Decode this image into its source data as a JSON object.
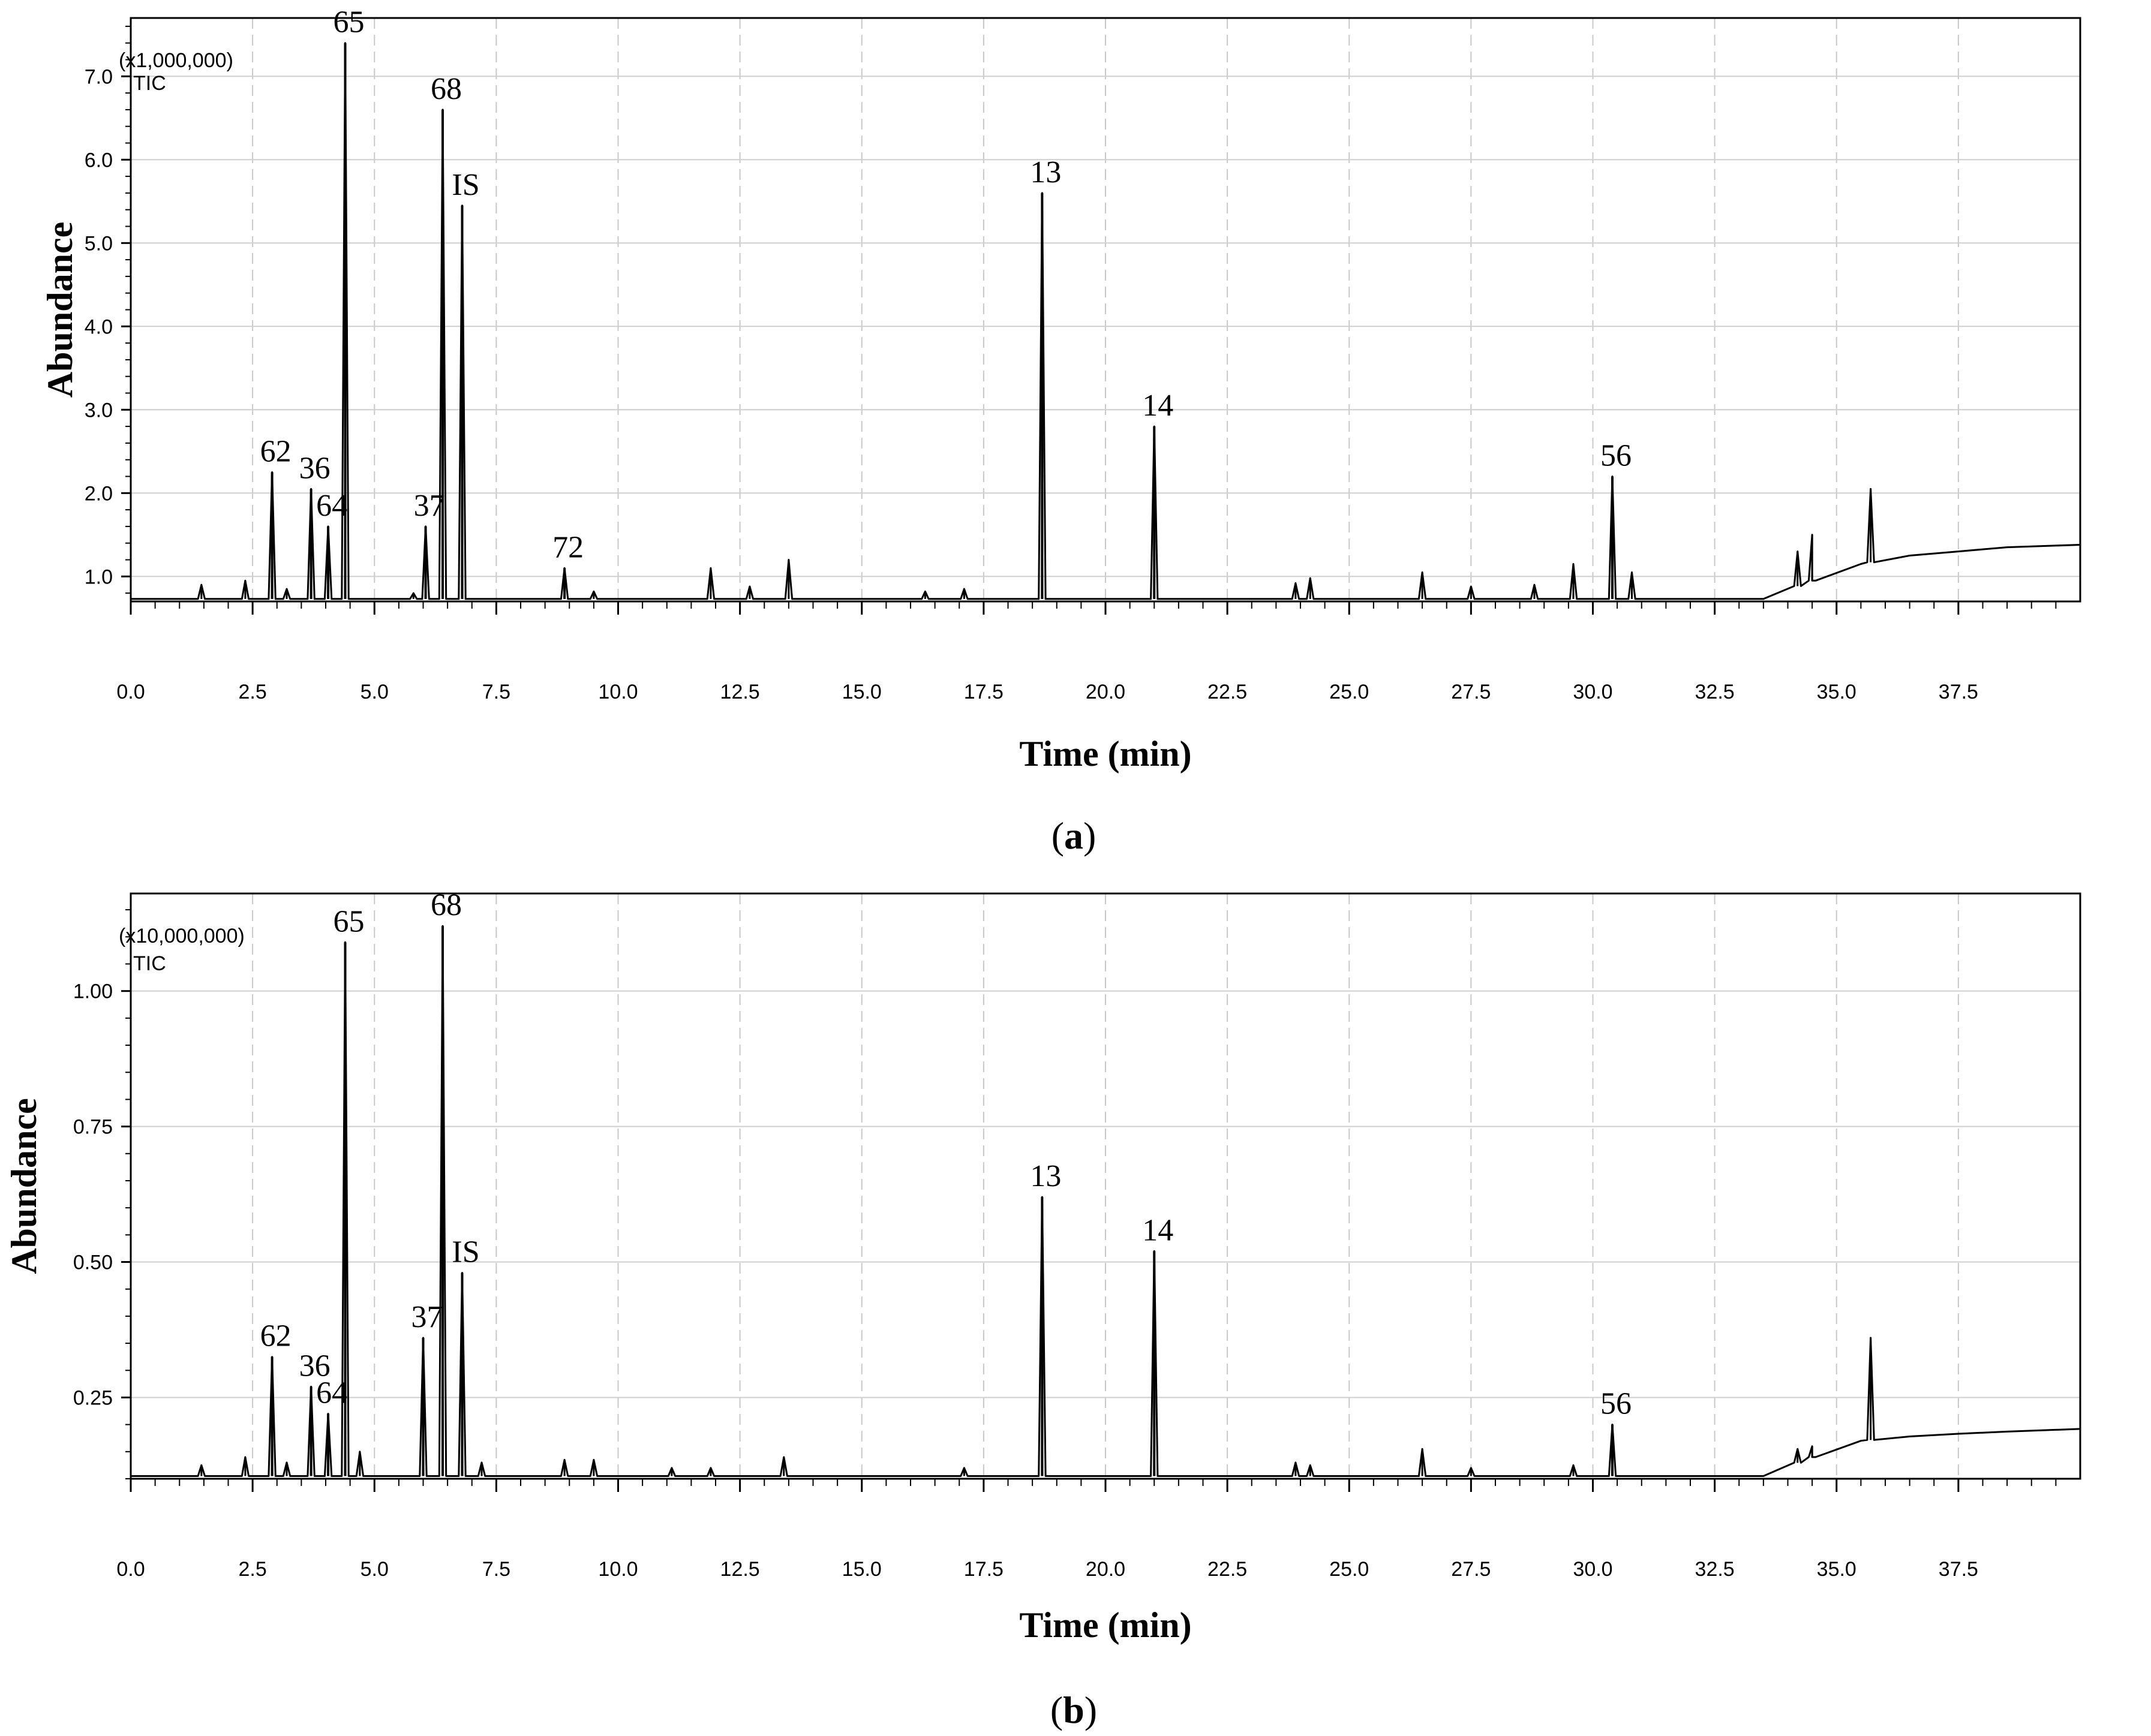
{
  "chart_data": [
    {
      "type": "line",
      "panel_label_open": "(",
      "panel_label": "a",
      "panel_label_close": ")",
      "xlabel": "Time (min)",
      "ylabel": "Abundance",
      "unit_label": "(x1,000,000)",
      "trace_label": "TIC",
      "xlim": [
        0,
        40
      ],
      "ylim": [
        0.7,
        7.7
      ],
      "x_ticks": [
        "0.0",
        "2.5",
        "5.0",
        "7.5",
        "10.0",
        "12.5",
        "15.0",
        "17.5",
        "20.0",
        "22.5",
        "25.0",
        "27.5",
        "30.0",
        "32.5",
        "35.0",
        "37.5"
      ],
      "y_ticks": [
        "1.0",
        "2.0",
        "3.0",
        "4.0",
        "5.0",
        "6.0",
        "7.0"
      ],
      "grid": true,
      "baseline": 0.73,
      "peaks": [
        {
          "label": "62",
          "x": 2.9,
          "y": 2.25
        },
        {
          "label": "36",
          "x": 3.7,
          "y": 2.05
        },
        {
          "label": "64",
          "x": 4.05,
          "y": 1.6
        },
        {
          "label": "65",
          "x": 4.4,
          "y": 7.4
        },
        {
          "label": "37",
          "x": 6.05,
          "y": 1.6
        },
        {
          "label": "68",
          "x": 6.4,
          "y": 6.6
        },
        {
          "label": "IS",
          "x": 6.8,
          "y": 5.45
        },
        {
          "label": "72",
          "x": 8.9,
          "y": 1.1
        },
        {
          "label": "13",
          "x": 18.7,
          "y": 5.6
        },
        {
          "label": "14",
          "x": 21.0,
          "y": 2.8
        },
        {
          "label": "56",
          "x": 30.4,
          "y": 2.2
        }
      ],
      "minor_peaks": [
        {
          "x": 1.45,
          "y": 0.9
        },
        {
          "x": 2.35,
          "y": 0.95
        },
        {
          "x": 3.2,
          "y": 0.85
        },
        {
          "x": 5.8,
          "y": 0.8
        },
        {
          "x": 9.5,
          "y": 0.82
        },
        {
          "x": 11.9,
          "y": 1.1
        },
        {
          "x": 12.7,
          "y": 0.88
        },
        {
          "x": 13.5,
          "y": 1.2
        },
        {
          "x": 16.3,
          "y": 0.82
        },
        {
          "x": 17.1,
          "y": 0.85
        },
        {
          "x": 23.9,
          "y": 0.92
        },
        {
          "x": 24.2,
          "y": 0.98
        },
        {
          "x": 26.5,
          "y": 1.05
        },
        {
          "x": 27.5,
          "y": 0.88
        },
        {
          "x": 28.8,
          "y": 0.9
        },
        {
          "x": 29.6,
          "y": 1.15
        },
        {
          "x": 30.8,
          "y": 1.05
        },
        {
          "x": 34.2,
          "y": 1.3
        },
        {
          "x": 34.5,
          "y": 1.5
        },
        {
          "x": 35.7,
          "y": 2.05
        }
      ],
      "drift": [
        [
          33.5,
          0.73
        ],
        [
          34.5,
          0.95
        ],
        [
          35.5,
          1.15
        ],
        [
          36.5,
          1.25
        ],
        [
          37.5,
          1.3
        ],
        [
          38.5,
          1.35
        ],
        [
          40.0,
          1.38
        ]
      ]
    },
    {
      "type": "line",
      "panel_label_open": "(",
      "panel_label": "b",
      "panel_label_close": ")",
      "xlabel": "Time (min)",
      "ylabel": "Abundance",
      "unit_label": "(x10,000,000)",
      "trace_label": "TIC",
      "xlim": [
        0,
        40
      ],
      "ylim": [
        0.1,
        1.18
      ],
      "x_ticks": [
        "0.0",
        "2.5",
        "5.0",
        "7.5",
        "10.0",
        "12.5",
        "15.0",
        "17.5",
        "20.0",
        "22.5",
        "25.0",
        "27.5",
        "30.0",
        "32.5",
        "35.0",
        "37.5"
      ],
      "y_ticks": [
        "0.25",
        "0.50",
        "0.75",
        "1.00"
      ],
      "grid": true,
      "baseline": 0.105,
      "peaks": [
        {
          "label": "62",
          "x": 2.9,
          "y": 0.325
        },
        {
          "label": "36",
          "x": 3.7,
          "y": 0.27
        },
        {
          "label": "64",
          "x": 4.05,
          "y": 0.22
        },
        {
          "label": "65",
          "x": 4.4,
          "y": 1.09
        },
        {
          "label": "37",
          "x": 6.0,
          "y": 0.36
        },
        {
          "label": "68",
          "x": 6.4,
          "y": 1.12
        },
        {
          "label": "IS",
          "x": 6.8,
          "y": 0.48
        },
        {
          "label": "13",
          "x": 18.7,
          "y": 0.62
        },
        {
          "label": "14",
          "x": 21.0,
          "y": 0.52
        },
        {
          "label": "56",
          "x": 30.4,
          "y": 0.2
        }
      ],
      "minor_peaks": [
        {
          "x": 1.45,
          "y": 0.125
        },
        {
          "x": 2.35,
          "y": 0.14
        },
        {
          "x": 3.2,
          "y": 0.13
        },
        {
          "x": 4.7,
          "y": 0.15
        },
        {
          "x": 7.2,
          "y": 0.13
        },
        {
          "x": 8.9,
          "y": 0.135
        },
        {
          "x": 9.5,
          "y": 0.135
        },
        {
          "x": 11.1,
          "y": 0.12
        },
        {
          "x": 11.9,
          "y": 0.12
        },
        {
          "x": 13.4,
          "y": 0.14
        },
        {
          "x": 17.1,
          "y": 0.12
        },
        {
          "x": 23.9,
          "y": 0.13
        },
        {
          "x": 24.2,
          "y": 0.125
        },
        {
          "x": 26.5,
          "y": 0.155
        },
        {
          "x": 27.5,
          "y": 0.12
        },
        {
          "x": 29.6,
          "y": 0.125
        },
        {
          "x": 34.2,
          "y": 0.155
        },
        {
          "x": 34.5,
          "y": 0.16
        },
        {
          "x": 35.7,
          "y": 0.36
        }
      ],
      "drift": [
        [
          33.5,
          0.105
        ],
        [
          34.5,
          0.14
        ],
        [
          35.5,
          0.17
        ],
        [
          36.5,
          0.178
        ],
        [
          37.5,
          0.183
        ],
        [
          38.5,
          0.187
        ],
        [
          40.0,
          0.192
        ]
      ]
    }
  ]
}
